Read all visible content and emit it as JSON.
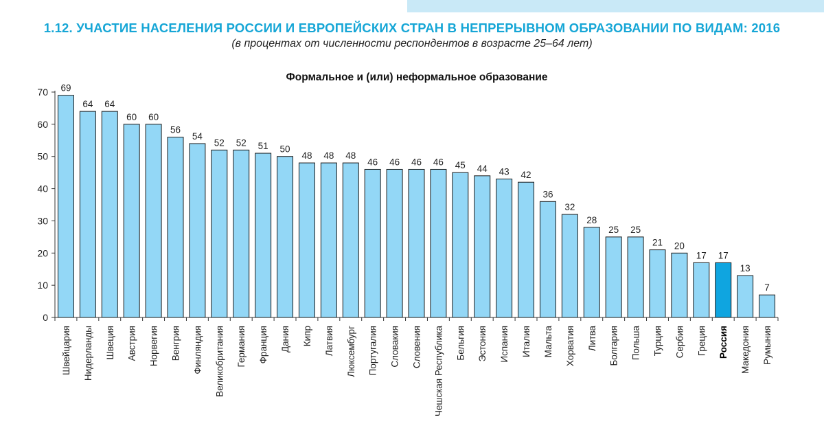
{
  "header": {
    "title": "1.12. УЧАСТИЕ НАСЕЛЕНИЯ РОССИИ И ЕВРОПЕЙСКИХ СТРАН В НЕПРЕРЫВНОМ ОБРАЗОВАНИИ ПО ВИДАМ: 2016",
    "subtitle": "(в процентах от численности респондентов в возрасте 25–64 лет)"
  },
  "colors": {
    "title": "#16a6d6",
    "bar": "#93d7f6",
    "bar_highlight": "#0fa5e0",
    "bar_stroke": "#1a1a1a"
  },
  "chart_data": {
    "type": "bar",
    "title": "Формальное и (или) неформальное образование",
    "xlabel": "",
    "ylabel": "",
    "ylim": [
      0,
      70
    ],
    "yticks": [
      0,
      10,
      20,
      30,
      40,
      50,
      60,
      70
    ],
    "grid": false,
    "highlight": "Россия",
    "categories": [
      "Швейцария",
      "Нидерланды",
      "Швеция",
      "Австрия",
      "Норвегия",
      "Венгрия",
      "Финляндия",
      "Великобритания",
      "Германия",
      "Франция",
      "Дания",
      "Кипр",
      "Латвия",
      "Люксембург",
      "Португалия",
      "Словакия",
      "Словения",
      "Чешская Республика",
      "Бельгия",
      "Эстония",
      "Испания",
      "Италия",
      "Мальта",
      "Хорватия",
      "Литва",
      "Болгария",
      "Польша",
      "Турция",
      "Сербия",
      "Греция",
      "Россия",
      "Македония",
      "Румыния"
    ],
    "values": [
      69,
      64,
      64,
      60,
      60,
      56,
      54,
      52,
      52,
      51,
      50,
      48,
      48,
      48,
      46,
      46,
      46,
      46,
      45,
      44,
      43,
      42,
      36,
      32,
      28,
      25,
      25,
      21,
      20,
      17,
      17,
      13,
      7
    ]
  }
}
